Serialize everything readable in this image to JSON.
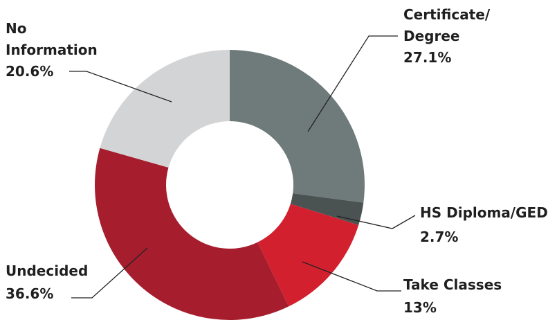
{
  "chart_data": {
    "type": "donut",
    "categories": [
      "Certificate/\nDegree",
      "HS Diploma/GED",
      "Take Classes",
      "Undecided",
      "No\nInformation"
    ],
    "values": [
      27.1,
      2.7,
      13,
      36.6,
      20.6
    ],
    "value_labels": [
      "27.1%",
      "2.7%",
      "13%",
      "36.6%",
      "20.6%"
    ],
    "colors": [
      "#6f7b7a",
      "#4a5352",
      "#d2202f",
      "#a61e2e",
      "#d3d4d5"
    ]
  }
}
